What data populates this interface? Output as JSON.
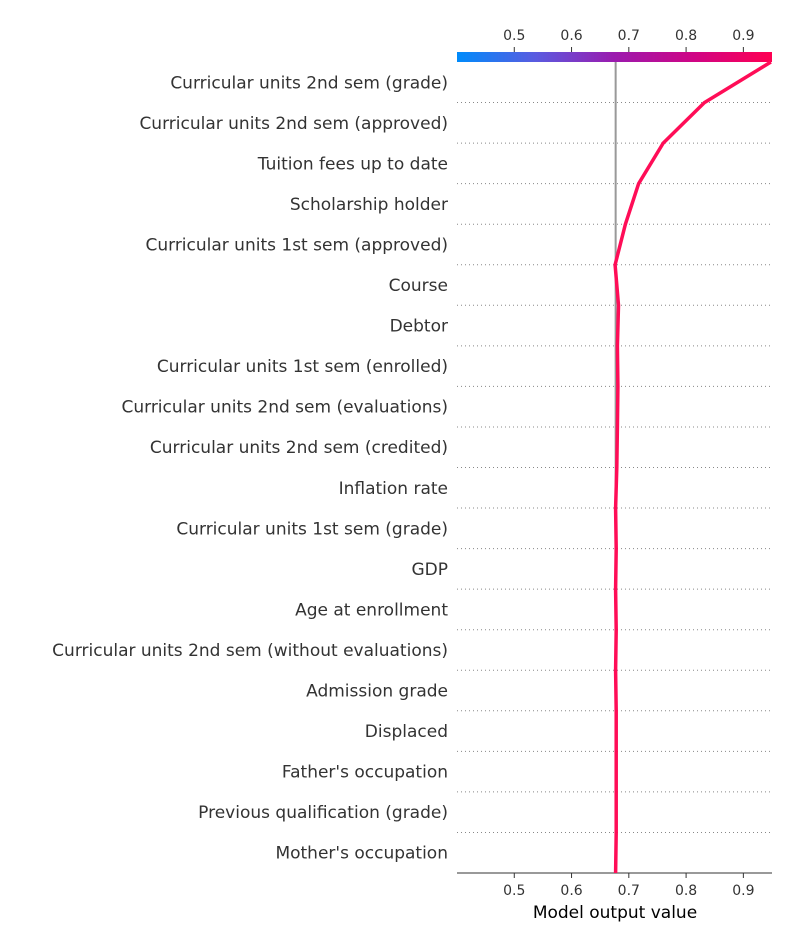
{
  "chart_data": {
    "type": "decision-plot",
    "base_value": 0.677,
    "xlim": [
      0.4,
      0.95
    ],
    "x_ticks": [
      0.5,
      0.6,
      0.7,
      0.8,
      0.9
    ],
    "x_tick_labels": [
      "0.5",
      "0.6",
      "0.7",
      "0.8",
      "0.9"
    ],
    "xlabel": "Model output value",
    "features": [
      "Curricular units 2nd sem (grade)",
      "Curricular units 2nd sem (approved)",
      "Tuition fees up to date",
      "Scholarship holder",
      "Curricular units 1st sem (approved)",
      "Course",
      "Debtor",
      "Curricular units 1st sem (enrolled)",
      "Curricular units 2nd sem (evaluations)",
      "Curricular units 2nd sem (credited)",
      "Inflation rate",
      "Curricular units 1st sem (grade)",
      "GDP",
      "Age at enrollment",
      "Curricular units 2nd sem (without evaluations)",
      "Admission grade",
      "Displaced",
      "Father's occupation",
      "Previous qualification (grade)",
      "Mother's occupation"
    ],
    "cumulative_values": [
      0.677,
      0.678,
      0.678,
      0.678,
      0.678,
      0.677,
      0.678,
      0.677,
      0.678,
      0.677,
      0.679,
      0.68,
      0.681,
      0.68,
      0.682,
      0.676,
      0.694,
      0.717,
      0.76,
      0.832,
      0.948
    ],
    "line_color": "#ff0d57",
    "base_line_color": "#999999",
    "colormap": [
      "#008bfb",
      "#5a5be0",
      "#9b1aae",
      "#cf0585",
      "#ff0052"
    ]
  }
}
